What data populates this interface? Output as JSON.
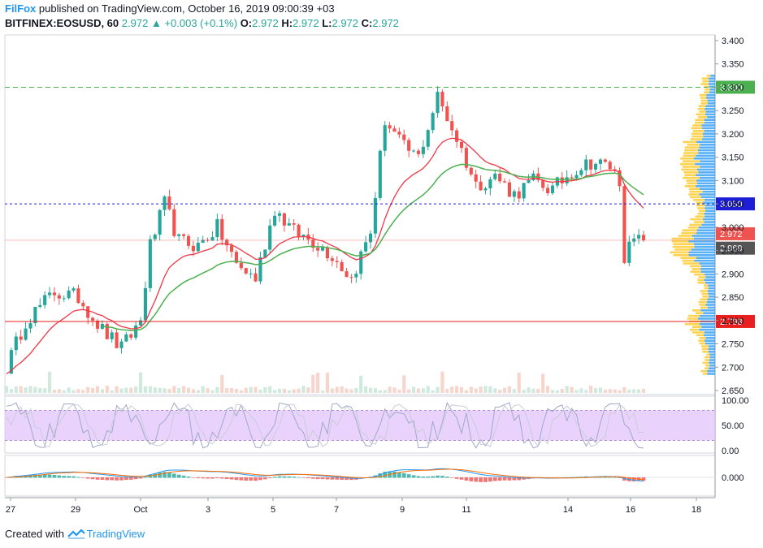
{
  "header": {
    "author": "FilFox",
    "published_text": " published on TradingView.com, October 16, 2019 09:00:39 +03",
    "symbol": "BITFINEX:EOSUSD, 60",
    "last": "2.972",
    "change": "+0.003 (+0.1%)",
    "o_label": "O:",
    "o_value": "2.972",
    "h_label": "H:",
    "h_value": "2.972",
    "l_label": "L:",
    "l_value": "2.972",
    "c_label": "C:",
    "c_value": "2.972"
  },
  "footer": {
    "created_with": "Created with",
    "brand": "TradingView"
  },
  "colors": {
    "up": "#26a69a",
    "down": "#ef5350",
    "ma_fast": "#f23645",
    "ma_slow": "#4caf50",
    "rsi_band": "#e1c4fb",
    "vp_up": "#2196f3",
    "vp_down": "#ffc107"
  },
  "chart_data": {
    "type": "candlestick",
    "price_axis": {
      "min": 2.65,
      "max": 3.4,
      "ticks": [
        "3.400",
        "3.350",
        "3.300",
        "3.250",
        "3.200",
        "3.150",
        "3.100",
        "3.050",
        "3.000",
        "2.950",
        "2.900",
        "2.850",
        "2.800",
        "2.750",
        "2.700",
        "2.650"
      ]
    },
    "time_axis": {
      "ticks": [
        "27",
        "29",
        "Oct",
        "3",
        "5",
        "7",
        "9",
        "11",
        "14",
        "16",
        "18"
      ]
    },
    "price_path": [
      [
        0,
        2.7
      ],
      [
        4,
        2.8
      ],
      [
        10,
        2.86
      ],
      [
        15,
        2.85
      ],
      [
        20,
        2.78
      ],
      [
        24,
        2.74
      ],
      [
        28,
        2.8
      ],
      [
        30,
        2.96
      ],
      [
        33,
        3.05
      ],
      [
        36,
        2.97
      ],
      [
        40,
        2.96
      ],
      [
        44,
        3.0
      ],
      [
        48,
        2.92
      ],
      [
        52,
        2.89
      ],
      [
        56,
        3.04
      ],
      [
        60,
        2.99
      ],
      [
        64,
        2.97
      ],
      [
        68,
        2.94
      ],
      [
        72,
        2.89
      ],
      [
        76,
        2.99
      ],
      [
        79,
        3.23
      ],
      [
        83,
        3.17
      ],
      [
        86,
        3.15
      ],
      [
        90,
        3.28
      ],
      [
        94,
        3.19
      ],
      [
        98,
        3.09
      ],
      [
        102,
        3.11
      ],
      [
        106,
        3.07
      ],
      [
        110,
        3.1
      ],
      [
        114,
        3.08
      ],
      [
        118,
        3.12
      ],
      [
        122,
        3.14
      ],
      [
        126,
        3.13
      ],
      [
        128,
        3.1
      ],
      [
        129,
        2.94
      ],
      [
        131,
        2.97
      ],
      [
        133,
        2.97
      ]
    ],
    "levels": [
      {
        "value": 3.3,
        "label": "3.300",
        "color": "#4caf50",
        "style": "dashed"
      },
      {
        "value": 3.05,
        "label": "3.050",
        "color": "#1e1ed6",
        "style": "dotted"
      },
      {
        "value": 2.798,
        "label": "2.798",
        "color": "#e91e1e",
        "style": "solid"
      }
    ],
    "price_labels": [
      {
        "value": 2.972,
        "label": "2.972",
        "color": "#ef5350"
      },
      {
        "value": 2.969,
        "label": "2.969",
        "color": "#555555"
      }
    ],
    "rsi": {
      "ticks": [
        "100.00",
        "50.00",
        "0.00"
      ],
      "upper": 80,
      "lower": 20
    },
    "macd": {
      "ticks": [
        "0.000"
      ]
    }
  }
}
